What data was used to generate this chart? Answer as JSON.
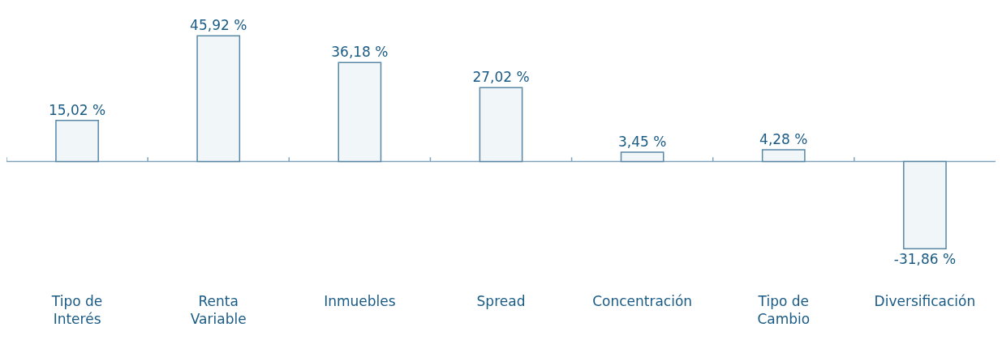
{
  "chart_data": {
    "type": "bar",
    "categories": [
      "Tipo de\nInterés",
      "Renta\nVariable",
      "Inmuebles",
      "Spread",
      "Concentración",
      "Tipo de\nCambio",
      "Diversificación"
    ],
    "values": [
      15.02,
      45.92,
      36.18,
      27.02,
      3.45,
      4.28,
      -31.86
    ],
    "value_labels": [
      "15,02 %",
      "45,92 %",
      "36,18 %",
      "27,02 %",
      "3,45 %",
      "4,28 %",
      "-31,86 %"
    ],
    "color": "#f1f6f9",
    "ref_lines": [
      {
        "axis": "y",
        "value": 0,
        "color": "#7fa3bd"
      }
    ]
  }
}
